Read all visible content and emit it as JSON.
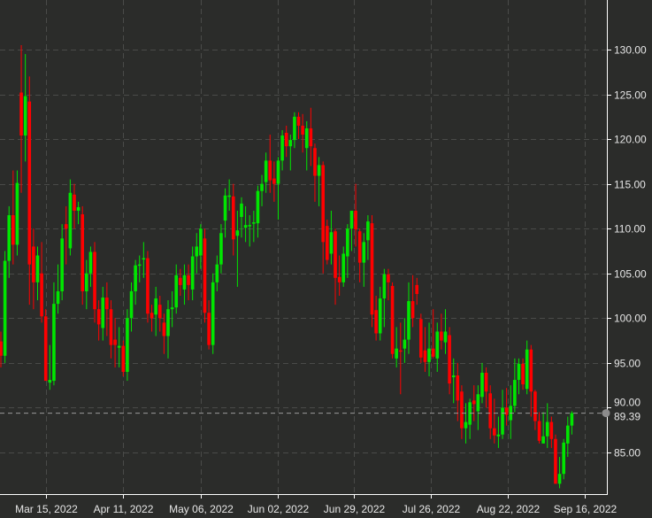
{
  "chart_data": {
    "type": "candlestick",
    "title": "",
    "xlabel": "",
    "ylabel": "",
    "ylim": [
      80.5,
      135
    ],
    "grid": true,
    "y_ticks": [
      "85.00",
      "90.00",
      "95.00",
      "100.00",
      "105.00",
      "110.00",
      "115.00",
      "120.00",
      "125.00",
      "130.00"
    ],
    "x_ticks": [
      {
        "label": "Mar 15, 2022",
        "index": 11
      },
      {
        "label": "Apr 11, 2022",
        "index": 30
      },
      {
        "label": "May 06, 2022",
        "index": 49
      },
      {
        "label": "Jun 02, 2022",
        "index": 68
      },
      {
        "label": "Jun 29, 2022",
        "index": 86.5
      },
      {
        "label": "Jul 26, 2022",
        "index": 105.5
      },
      {
        "label": "Aug 22, 2022",
        "index": 124.3
      },
      {
        "label": "Sep 16, 2022",
        "index": 143.2
      }
    ],
    "last_price": 89.39,
    "last_price_label": "89.39",
    "colors": {
      "up": "#00e600",
      "down": "#ff0000",
      "background": "#2b2c2a",
      "grid": "#4a4b49",
      "axis": "#ffffff",
      "last_price_marker": "#8c8c8c"
    },
    "ohlc": [
      [
        97.4,
        98.5,
        94.5,
        95.8
      ],
      [
        95.8,
        107.5,
        95,
        106.4
      ],
      [
        106.4,
        112.5,
        104.5,
        111.5
      ],
      [
        111.5,
        116.5,
        106,
        108.2
      ],
      [
        108.2,
        116.5,
        107,
        115.1
      ],
      [
        125.2,
        130.5,
        114,
        120.4
      ],
      [
        120.4,
        129.5,
        117.5,
        124.8
      ],
      [
        124.2,
        127,
        101.5,
        106
      ],
      [
        108,
        110,
        101,
        104
      ],
      [
        104,
        108,
        102,
        107
      ],
      [
        105,
        108.5,
        99.5,
        100.2
      ],
      [
        100.2,
        101,
        93.5,
        93
      ],
      [
        92.8,
        97,
        92,
        93.1
      ],
      [
        93,
        104,
        92.5,
        101.6
      ],
      [
        101.6,
        106,
        100.5,
        103
      ],
      [
        103,
        110.5,
        102,
        108.9
      ],
      [
        110.5,
        112.5,
        106,
        110
      ],
      [
        107.8,
        115.5,
        107,
        114
      ],
      [
        113.8,
        115,
        110,
        112
      ],
      [
        112,
        113,
        110.5,
        112.4
      ],
      [
        111.6,
        112.5,
        101.5,
        103
      ],
      [
        103,
        106.5,
        101,
        105
      ],
      [
        105,
        108,
        103.5,
        107.4
      ],
      [
        107.4,
        108.5,
        99.5,
        101
      ],
      [
        101,
        102,
        97.5,
        99.3
      ],
      [
        98.9,
        103.5,
        97.5,
        102.3
      ],
      [
        102.3,
        104,
        98,
        101
      ],
      [
        101,
        102,
        95.5,
        97
      ],
      [
        97.6,
        100,
        94.5,
        97
      ],
      [
        96.7,
        99,
        94.5,
        96.9
      ],
      [
        96.9,
        97.5,
        93.5,
        94
      ],
      [
        94,
        101,
        93,
        100
      ],
      [
        100,
        104,
        98.5,
        103
      ],
      [
        103,
        106.5,
        101.5,
        105.9
      ],
      [
        105.9,
        107,
        104,
        106
      ],
      [
        106.6,
        108.5,
        104.5,
        106.7
      ],
      [
        106.7,
        107.5,
        99.5,
        100.5
      ],
      [
        100.6,
        101.5,
        98.5,
        100
      ],
      [
        100.4,
        103.5,
        98,
        102.2
      ],
      [
        101.5,
        102.5,
        98.5,
        100
      ],
      [
        99.5,
        100.5,
        96,
        98
      ],
      [
        98,
        102,
        95.5,
        101
      ],
      [
        101,
        103,
        99,
        101.2
      ],
      [
        101.2,
        106,
        100.5,
        104.8
      ],
      [
        104.5,
        105.5,
        102.5,
        103.7
      ],
      [
        103.2,
        106,
        101.5,
        104.8
      ],
      [
        104.8,
        106,
        102,
        103.7
      ],
      [
        103.2,
        108,
        102,
        106.9
      ],
      [
        106.9,
        109.5,
        105,
        108
      ],
      [
        107,
        110.5,
        105.5,
        110
      ],
      [
        108.9,
        110,
        99.5,
        100.6
      ],
      [
        100.6,
        102,
        96.5,
        97
      ],
      [
        97,
        105,
        96,
        104
      ],
      [
        104,
        107,
        103,
        106
      ],
      [
        106,
        110.5,
        105,
        109.5
      ],
      [
        110.9,
        114.5,
        109,
        113.7
      ],
      [
        113.7,
        115.5,
        112,
        113.7
      ],
      [
        113.6,
        115,
        107,
        108.8
      ],
      [
        109.2,
        112,
        103.5,
        109.8
      ],
      [
        111.3,
        113.5,
        109,
        112.8
      ],
      [
        110.1,
        112.5,
        108.5,
        110.4
      ],
      [
        110.4,
        111.5,
        108,
        110.4
      ],
      [
        110.7,
        112,
        108.5,
        110.7
      ],
      [
        110.6,
        114.8,
        109,
        114.2
      ],
      [
        114.2,
        116,
        112.5,
        115
      ],
      [
        115.2,
        118.5,
        114,
        117.6
      ],
      [
        117.6,
        120.5,
        114,
        115.4
      ],
      [
        115.6,
        117.5,
        113,
        115
      ],
      [
        115,
        118,
        111,
        117.6
      ],
      [
        117.6,
        121,
        116.5,
        120.4
      ],
      [
        120.7,
        121.5,
        118,
        119.2
      ],
      [
        119.2,
        120.5,
        116.5,
        119.9
      ],
      [
        119.9,
        123,
        119,
        122.5
      ],
      [
        122.5,
        123,
        120,
        121.5
      ],
      [
        121.5,
        122.8,
        118.5,
        120.5
      ],
      [
        119,
        122,
        116.5,
        121.2
      ],
      [
        121.2,
        123.5,
        117,
        119.2
      ],
      [
        119,
        119.5,
        113,
        115.9
      ],
      [
        115.9,
        118,
        112.5,
        117.1
      ],
      [
        117.1,
        117.5,
        105,
        108.5
      ],
      [
        110.3,
        111,
        106,
        106.5
      ],
      [
        107.2,
        112,
        106,
        109.6
      ],
      [
        109.7,
        110,
        101.5,
        104.5
      ],
      [
        104.6,
        107,
        102.5,
        104
      ],
      [
        104,
        108,
        103.5,
        107.2
      ],
      [
        106.9,
        110.5,
        104.5,
        110
      ],
      [
        110,
        112,
        107.5,
        112
      ],
      [
        112,
        115,
        108,
        109.9
      ],
      [
        109.7,
        110,
        104,
        106.2
      ],
      [
        106.2,
        109.5,
        103.5,
        108.5
      ],
      [
        108.7,
        111.5,
        106.5,
        110.8
      ],
      [
        110.6,
        111.5,
        99,
        100.4
      ],
      [
        100.9,
        102.5,
        97.5,
        98.3
      ],
      [
        98.3,
        103.5,
        97.5,
        102.2
      ],
      [
        102.2,
        105.5,
        99,
        104.9
      ],
      [
        104.9,
        105.5,
        102,
        104
      ],
      [
        103.6,
        104,
        95.5,
        96
      ],
      [
        95.5,
        99,
        94.5,
        96.6
      ],
      [
        96.4,
        99.5,
        91.5,
        96.3
      ],
      [
        96.6,
        100,
        95,
        97.6
      ],
      [
        97.6,
        104,
        96,
        101.9
      ],
      [
        101.9,
        104.8,
        99,
        100
      ],
      [
        103.7,
        104.5,
        101.5,
        102.7
      ],
      [
        99.9,
        100.5,
        95,
        95.6
      ],
      [
        96.4,
        99,
        94,
        95.1
      ],
      [
        95.1,
        99.5,
        93.5,
        96.6
      ],
      [
        96.6,
        101,
        95.5,
        95.7
      ],
      [
        95.5,
        99.5,
        94,
        98.5
      ],
      [
        98.5,
        100.5,
        96.5,
        97.5
      ],
      [
        97.3,
        101,
        96,
        98.5
      ],
      [
        98.1,
        99,
        91.5,
        92.7
      ],
      [
        93.4,
        95.5,
        90.5,
        93.6
      ],
      [
        93.6,
        95,
        88.5,
        90.8
      ],
      [
        91.8,
        92.5,
        86.5,
        87.7
      ],
      [
        87.7,
        90.5,
        86,
        88.4
      ],
      [
        88.1,
        91,
        86.5,
        90.6
      ],
      [
        90.8,
        92.5,
        88.5,
        90.4
      ],
      [
        89.6,
        92.5,
        87.5,
        91.5
      ],
      [
        91.2,
        95,
        90.5,
        93.9
      ],
      [
        93.9,
        94.5,
        90,
        91.8
      ],
      [
        91.6,
        92.5,
        86.5,
        87.7
      ],
      [
        87.7,
        91,
        86,
        86.9
      ],
      [
        86.8,
        89,
        85.5,
        87
      ],
      [
        87,
        92,
        86.5,
        90
      ],
      [
        90,
        92.2,
        88,
        89.2
      ],
      [
        88.6,
        92.5,
        86.5,
        90.2
      ],
      [
        90.2,
        95.5,
        89.5,
        93.1
      ],
      [
        93.1,
        95.5,
        91.5,
        94.9
      ],
      [
        94.9,
        95.5,
        92,
        92.6
      ],
      [
        92.1,
        97.5,
        91.5,
        96.5
      ],
      [
        96.5,
        97,
        89,
        91.8
      ],
      [
        91.8,
        92,
        87.5,
        88.5
      ],
      [
        88.5,
        89.5,
        86,
        86.3
      ],
      [
        86,
        89.5,
        86,
        86.8
      ],
      [
        86.8,
        90.5,
        85.5,
        88.4
      ],
      [
        88.4,
        89,
        85.5,
        86.5
      ],
      [
        86.5,
        87,
        81.5,
        81.5
      ],
      [
        81.5,
        84.5,
        81,
        82.6
      ],
      [
        82.6,
        86.5,
        82,
        86.1
      ],
      [
        86,
        89,
        84.5,
        88
      ],
      [
        88,
        89.6,
        87,
        89.39
      ]
    ]
  }
}
